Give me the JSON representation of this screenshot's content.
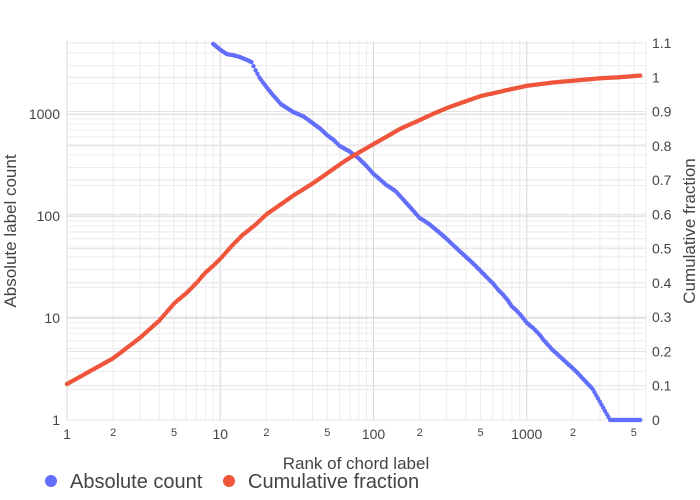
{
  "chart_data": {
    "type": "scatter",
    "x_axis": {
      "label": "Rank of chord label",
      "scale": "log",
      "range": [
        1,
        6000
      ],
      "major_ticks": [
        {
          "value": 1,
          "label": "1"
        },
        {
          "value": 10,
          "label": "10"
        },
        {
          "value": 100,
          "label": "100"
        },
        {
          "value": 1000,
          "label": "1000"
        }
      ],
      "minor_ticks": [
        {
          "value": 2,
          "label": "2"
        },
        {
          "value": 5,
          "label": "5"
        },
        {
          "value": 20,
          "label": "2"
        },
        {
          "value": 50,
          "label": "5"
        },
        {
          "value": 200,
          "label": "2"
        },
        {
          "value": 500,
          "label": "5"
        },
        {
          "value": 2000,
          "label": "2"
        },
        {
          "value": 5000,
          "label": "5"
        }
      ]
    },
    "y_axis_left": {
      "label": "Absolute label count",
      "scale": "log",
      "range": [
        1,
        5000
      ],
      "ticks": [
        {
          "value": 1,
          "label": "1"
        },
        {
          "value": 10,
          "label": "10"
        },
        {
          "value": 100,
          "label": "100"
        },
        {
          "value": 1000,
          "label": "1000"
        }
      ]
    },
    "y_axis_right": {
      "label": "Cumulative fraction",
      "scale": "linear",
      "range": [
        0,
        1.1
      ],
      "ticks": [
        {
          "value": 0,
          "label": "0"
        },
        {
          "value": 0.1,
          "label": "0.1"
        },
        {
          "value": 0.2,
          "label": "0.2"
        },
        {
          "value": 0.3,
          "label": "0.3"
        },
        {
          "value": 0.4,
          "label": "0.4"
        },
        {
          "value": 0.5,
          "label": "0.5"
        },
        {
          "value": 0.6,
          "label": "0.6"
        },
        {
          "value": 0.7,
          "label": "0.7"
        },
        {
          "value": 0.8,
          "label": "0.8"
        },
        {
          "value": 0.9,
          "label": "0.9"
        },
        {
          "value": 1,
          "label": "1"
        },
        {
          "value": 1.1,
          "label": "1.1"
        }
      ]
    },
    "grid": true,
    "legend": {
      "placement": "bottom-left",
      "orientation": "horizontal"
    },
    "series": [
      {
        "name": "Absolute count",
        "axis": "left",
        "color": "#636efa",
        "points": [
          [
            9,
            4900
          ],
          [
            10,
            4300
          ],
          [
            11,
            3900
          ],
          [
            12,
            3800
          ],
          [
            13,
            3700
          ],
          [
            14,
            3550
          ],
          [
            15,
            3400
          ],
          [
            16,
            3250
          ],
          [
            17,
            2700
          ],
          [
            18,
            2300
          ],
          [
            19,
            2050
          ],
          [
            20,
            1850
          ],
          [
            22,
            1550
          ],
          [
            25,
            1250
          ],
          [
            30,
            1050
          ],
          [
            35,
            950
          ],
          [
            40,
            820
          ],
          [
            45,
            720
          ],
          [
            50,
            620
          ],
          [
            55,
            560
          ],
          [
            60,
            490
          ],
          [
            70,
            430
          ],
          [
            80,
            370
          ],
          [
            90,
            310
          ],
          [
            100,
            260
          ],
          [
            110,
            230
          ],
          [
            120,
            205
          ],
          [
            140,
            175
          ],
          [
            160,
            140
          ],
          [
            180,
            115
          ],
          [
            200,
            96
          ],
          [
            230,
            84
          ],
          [
            260,
            72
          ],
          [
            300,
            60
          ],
          [
            350,
            48
          ],
          [
            400,
            40
          ],
          [
            450,
            34
          ],
          [
            500,
            29
          ],
          [
            550,
            25
          ],
          [
            600,
            22
          ],
          [
            650,
            19
          ],
          [
            700,
            17
          ],
          [
            750,
            15
          ],
          [
            800,
            13
          ],
          [
            850,
            12
          ],
          [
            900,
            11
          ],
          [
            1000,
            9
          ],
          [
            1100,
            8
          ],
          [
            1200,
            7
          ],
          [
            1300,
            6
          ],
          [
            1450,
            5
          ],
          [
            1700,
            4
          ],
          [
            2100,
            3
          ],
          [
            2700,
            2
          ],
          [
            3500,
            1
          ],
          [
            5500,
            1
          ]
        ]
      },
      {
        "name": "Cumulative fraction",
        "axis": "right",
        "color": "#ef553b",
        "points": [
          [
            1,
            0.105
          ],
          [
            2,
            0.18
          ],
          [
            3,
            0.24
          ],
          [
            4,
            0.29
          ],
          [
            5,
            0.34
          ],
          [
            6,
            0.37
          ],
          [
            7,
            0.4
          ],
          [
            8,
            0.43
          ],
          [
            9,
            0.45
          ],
          [
            10,
            0.47
          ],
          [
            12,
            0.51
          ],
          [
            14,
            0.54
          ],
          [
            17,
            0.57
          ],
          [
            20,
            0.6
          ],
          [
            25,
            0.63
          ],
          [
            30,
            0.655
          ],
          [
            40,
            0.69
          ],
          [
            50,
            0.72
          ],
          [
            60,
            0.745
          ],
          [
            70,
            0.765
          ],
          [
            80,
            0.78
          ],
          [
            100,
            0.805
          ],
          [
            120,
            0.825
          ],
          [
            150,
            0.85
          ],
          [
            200,
            0.875
          ],
          [
            250,
            0.895
          ],
          [
            300,
            0.91
          ],
          [
            400,
            0.93
          ],
          [
            500,
            0.945
          ],
          [
            700,
            0.96
          ],
          [
            1000,
            0.975
          ],
          [
            1500,
            0.985
          ],
          [
            2000,
            0.99
          ],
          [
            3000,
            0.997
          ],
          [
            4000,
            1.0
          ],
          [
            5500,
            1.005
          ]
        ]
      }
    ]
  }
}
